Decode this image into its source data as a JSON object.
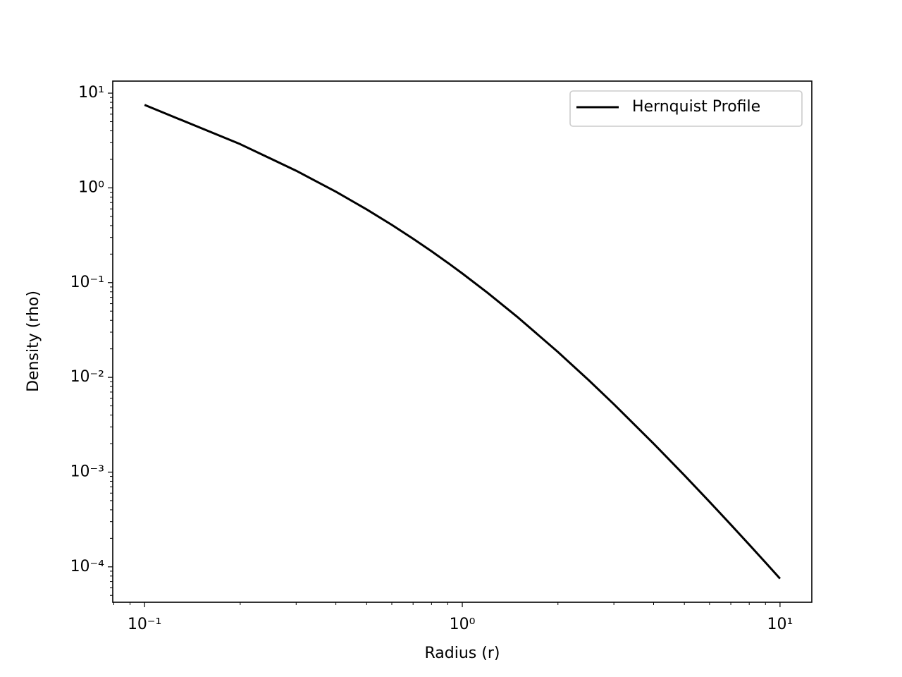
{
  "chart_data": {
    "type": "line",
    "x_label": "Radius (r)",
    "y_label": "Density (rho)",
    "x": [
      0.1,
      0.2,
      0.3,
      0.4,
      0.5,
      0.6,
      0.7,
      0.8,
      0.9,
      1.0,
      1.2,
      1.5,
      2,
      2.5,
      3,
      4,
      5,
      6,
      7,
      8,
      9,
      10
    ],
    "series": [
      {
        "name": "Hernquist Profile",
        "color": "#000000",
        "values": [
          7.513,
          2.894,
          1.517,
          0.911,
          0.5926,
          0.4069,
          0.2908,
          0.2143,
          0.162,
          0.125,
          0.07826,
          0.04267,
          0.01852,
          0.009329,
          0.005208,
          0.002,
          0.000926,
          0.000486,
          0.000279,
          0.0001715,
          0.0001111,
          7.51e-05
        ]
      }
    ],
    "xscale": "log",
    "yscale": "log",
    "xlim": [
      0.0794,
      12.59
    ],
    "ylim": [
      4.23e-05,
      13.4
    ],
    "xticks": [
      {
        "value": 0.1,
        "label": "10⁻¹"
      },
      {
        "value": 1,
        "label": "10⁰"
      },
      {
        "value": 10,
        "label": "10¹"
      }
    ],
    "yticks": [
      {
        "value": 0.0001,
        "label": "10⁻⁴"
      },
      {
        "value": 0.001,
        "label": "10⁻³"
      },
      {
        "value": 0.01,
        "label": "10⁻²"
      },
      {
        "value": 0.1,
        "label": "10⁻¹"
      },
      {
        "value": 1,
        "label": "10⁰"
      },
      {
        "value": 10,
        "label": "10¹"
      }
    ],
    "grid": false,
    "legend": "upper right"
  }
}
